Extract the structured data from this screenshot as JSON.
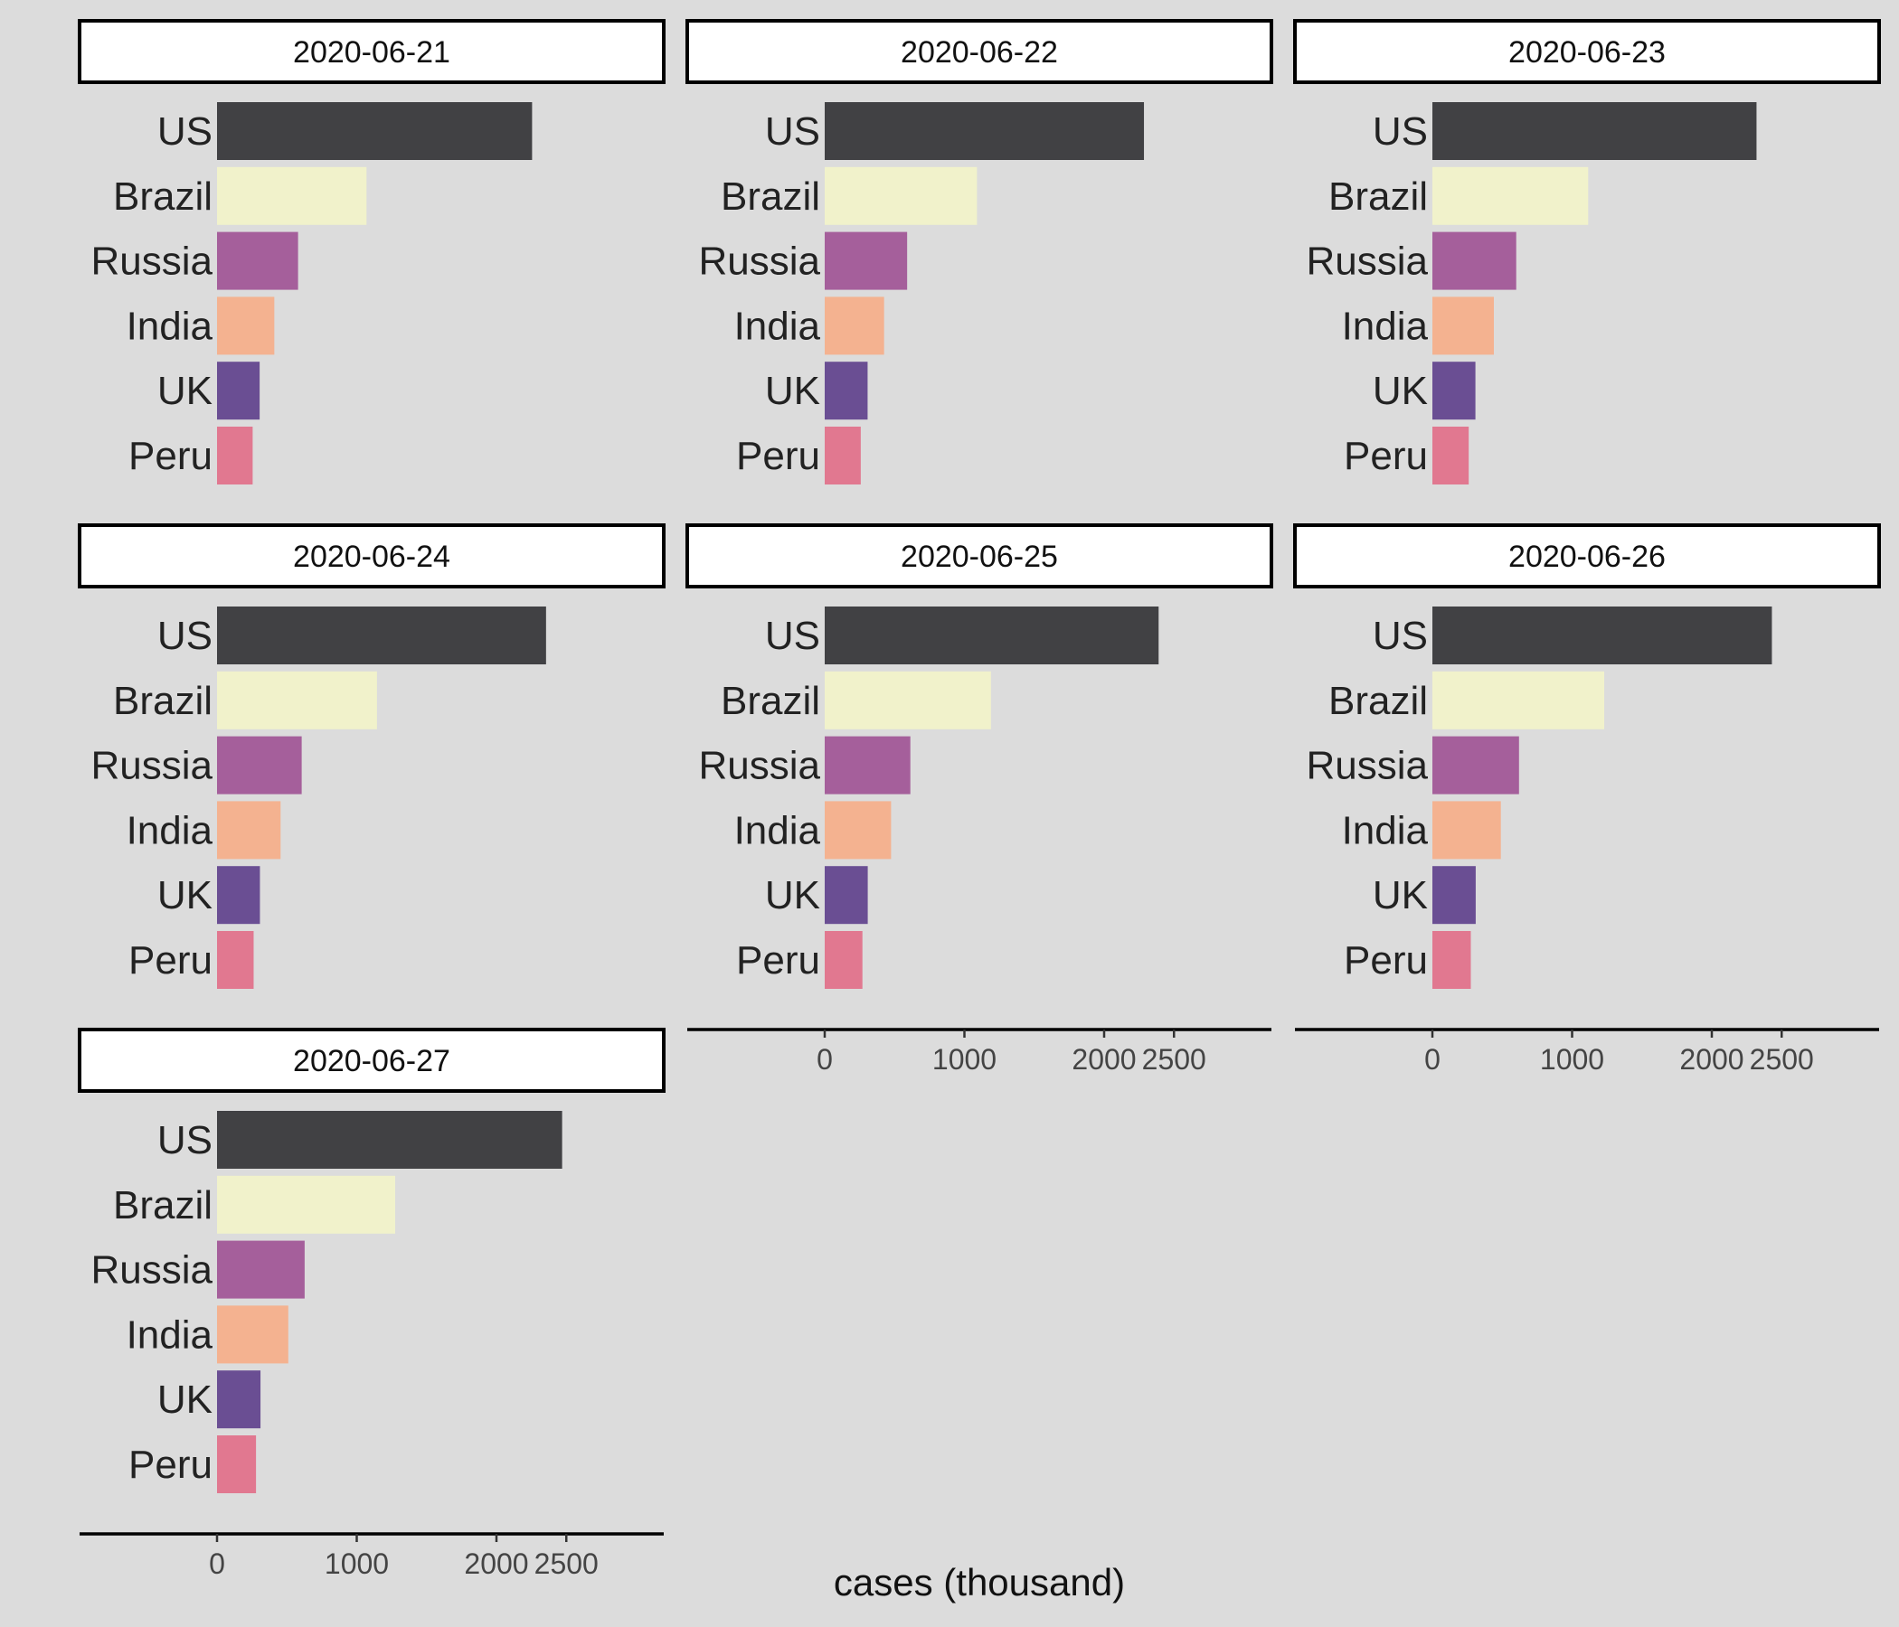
{
  "chart_data": {
    "type": "bar",
    "orientation": "horizontal",
    "xlabel": "cases (thousand)",
    "ylabel": "",
    "xlim": [
      -985,
      3200
    ],
    "x_ticks": [
      0,
      1000,
      2000,
      2500
    ],
    "x_tick_labels": [
      "0",
      "1000",
      "2000",
      "2500"
    ],
    "grid": false,
    "legend": "none",
    "background": "#dcdcdc",
    "strip_fill": "#ffffff",
    "categories": [
      "US",
      "Brazil",
      "Russia",
      "India",
      "UK",
      "Peru"
    ],
    "colors": {
      "US": "#414144",
      "Brazil": "#f1f2cb",
      "Russia": "#a55f9b",
      "India": "#f4b290",
      "UK": "#6a4e93",
      "Peru": "#e17890"
    },
    "panels": [
      {
        "label": "2020-06-21",
        "values": [
          2255,
          1070,
          580,
          410,
          305,
          255
        ]
      },
      {
        "label": "2020-06-22",
        "values": [
          2285,
          1090,
          590,
          425,
          307,
          258
        ]
      },
      {
        "label": "2020-06-23",
        "values": [
          2320,
          1115,
          600,
          440,
          308,
          260
        ]
      },
      {
        "label": "2020-06-24",
        "values": [
          2355,
          1145,
          606,
          455,
          307,
          262
        ]
      },
      {
        "label": "2020-06-25",
        "values": [
          2390,
          1190,
          613,
          475,
          308,
          270
        ]
      },
      {
        "label": "2020-06-26",
        "values": [
          2430,
          1230,
          620,
          490,
          310,
          275
        ]
      },
      {
        "label": "2020-06-27",
        "values": [
          2470,
          1275,
          627,
          510,
          311,
          279
        ]
      }
    ]
  }
}
